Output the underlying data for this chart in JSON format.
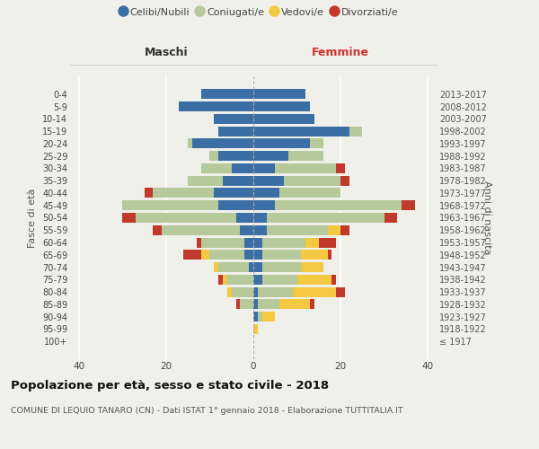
{
  "age_groups": [
    "100+",
    "95-99",
    "90-94",
    "85-89",
    "80-84",
    "75-79",
    "70-74",
    "65-69",
    "60-64",
    "55-59",
    "50-54",
    "45-49",
    "40-44",
    "35-39",
    "30-34",
    "25-29",
    "20-24",
    "15-19",
    "10-14",
    "5-9",
    "0-4"
  ],
  "birth_years": [
    "≤ 1917",
    "1918-1922",
    "1923-1927",
    "1928-1932",
    "1933-1937",
    "1938-1942",
    "1943-1947",
    "1948-1952",
    "1953-1957",
    "1958-1962",
    "1963-1967",
    "1968-1972",
    "1973-1977",
    "1978-1982",
    "1983-1987",
    "1988-1992",
    "1993-1997",
    "1998-2002",
    "2003-2007",
    "2008-2012",
    "2013-2017"
  ],
  "colors": {
    "celibi": "#3a6ea5",
    "coniugati": "#b5c99a",
    "vedovi": "#f5c842",
    "divorziati": "#c0392b"
  },
  "males": {
    "celibi": [
      0,
      0,
      0,
      0,
      0,
      0,
      1,
      2,
      2,
      3,
      4,
      8,
      9,
      7,
      5,
      8,
      14,
      8,
      9,
      17,
      12
    ],
    "coniugati": [
      0,
      0,
      0,
      3,
      5,
      6,
      7,
      8,
      10,
      18,
      23,
      22,
      14,
      8,
      7,
      2,
      1,
      0,
      0,
      0,
      0
    ],
    "vedovi": [
      0,
      0,
      0,
      0,
      1,
      1,
      1,
      2,
      0,
      0,
      0,
      0,
      0,
      0,
      0,
      0,
      0,
      0,
      0,
      0,
      0
    ],
    "divorziati": [
      0,
      0,
      0,
      1,
      0,
      1,
      0,
      4,
      1,
      2,
      3,
      0,
      2,
      0,
      0,
      0,
      0,
      0,
      0,
      0,
      0
    ]
  },
  "females": {
    "celibi": [
      0,
      0,
      1,
      1,
      1,
      2,
      2,
      2,
      2,
      3,
      3,
      5,
      6,
      7,
      5,
      8,
      13,
      22,
      14,
      13,
      12
    ],
    "coniugati": [
      0,
      0,
      1,
      5,
      8,
      8,
      9,
      9,
      10,
      14,
      27,
      29,
      14,
      13,
      14,
      8,
      3,
      3,
      0,
      0,
      0
    ],
    "vedovi": [
      0,
      1,
      3,
      7,
      10,
      8,
      5,
      6,
      3,
      3,
      0,
      0,
      0,
      0,
      0,
      0,
      0,
      0,
      0,
      0,
      0
    ],
    "divorziati": [
      0,
      0,
      0,
      1,
      2,
      1,
      0,
      1,
      4,
      2,
      3,
      3,
      0,
      2,
      2,
      0,
      0,
      0,
      0,
      0,
      0
    ]
  },
  "xlim": 42,
  "title": "Popolazione per età, sesso e stato civile - 2018",
  "subtitle": "COMUNE DI LEQUIO TANARO (CN) - Dati ISTAT 1° gennaio 2018 - Elaborazione TUTTITALIA.IT",
  "ylabel_left": "Fasce di età",
  "ylabel_right": "Anni di nascita",
  "xlabel_males": "Maschi",
  "xlabel_females": "Femmine",
  "legend_labels": [
    "Celibi/Nubili",
    "Coniugati/e",
    "Vedovi/e",
    "Divorziati/e"
  ],
  "background_color": "#f0f0eb"
}
